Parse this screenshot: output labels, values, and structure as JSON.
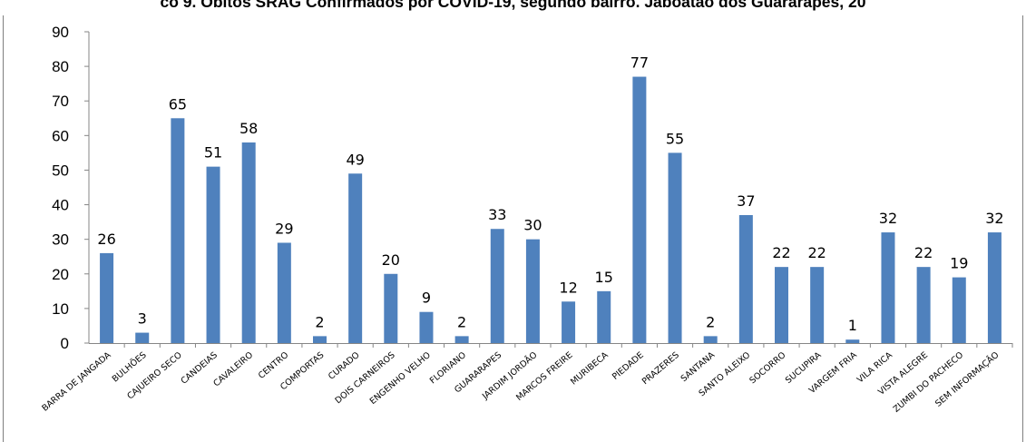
{
  "chart_data": {
    "type": "bar",
    "title": "co 9. Óbitos SRAG Confirmados por COVID-19, segundo bairro. Jaboatão dos Guararapes, 20",
    "xlabel": "",
    "ylabel": "",
    "ylim": [
      0,
      90
    ],
    "yticks": [
      0,
      10,
      20,
      30,
      40,
      50,
      60,
      70,
      80,
      90
    ],
    "grid": false,
    "legend": "none",
    "bar_color": "#4F81BD",
    "categories": [
      "BARRA DE JANGADA",
      "BULHÕES",
      "CAJUEIRO SECO",
      "CANDEIAS",
      "CAVALEIRO",
      "CENTRO",
      "COMPORTAS",
      "CURADO",
      "DOIS CARNEIROS",
      "ENGENHO VELHO",
      "FLORIANO",
      "GUARARAPES",
      "JARDIM JORDÃO",
      "MARCOS FREIRE",
      "MURIBECA",
      "PIEDADE",
      "PRAZERES",
      "SANTANA",
      "SANTO ALEIXO",
      "SOCORRO",
      "SUCUPIRA",
      "VARGEM FRIA",
      "VILA RICA",
      "VISTA ALEGRE",
      "ZUMBI DO PACHECO",
      "SEM INFORMAÇÃO"
    ],
    "values": [
      26,
      3,
      65,
      51,
      58,
      29,
      2,
      49,
      20,
      9,
      2,
      33,
      30,
      12,
      15,
      77,
      55,
      2,
      37,
      22,
      22,
      1,
      32,
      22,
      19,
      32
    ]
  }
}
